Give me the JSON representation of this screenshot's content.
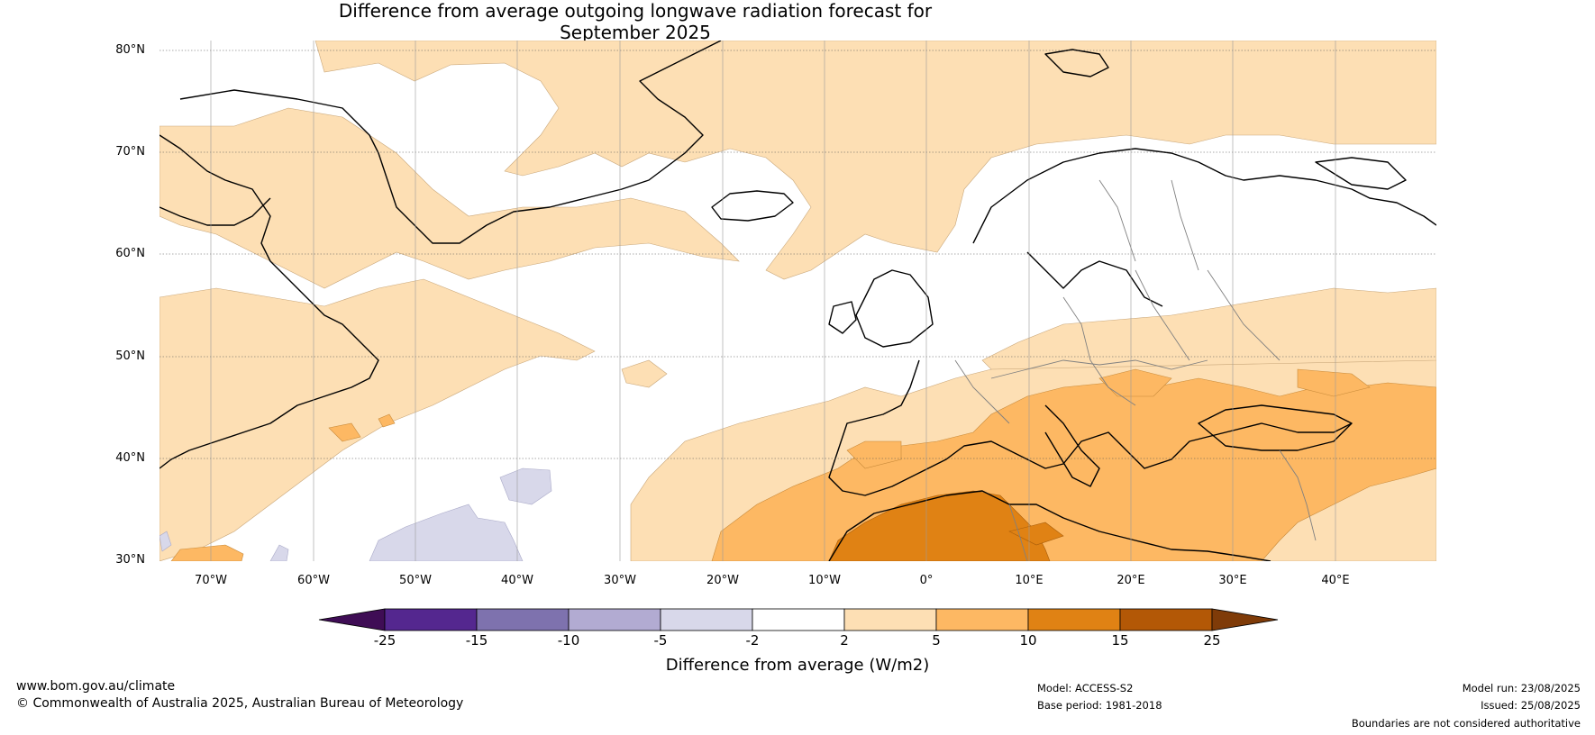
{
  "title": {
    "line1": "Difference from average outgoing longwave radiation forecast for",
    "line2": "September 2025"
  },
  "latitude_labels": [
    "80°N",
    "70°N",
    "60°N",
    "50°N",
    "40°N",
    "30°N"
  ],
  "longitude_labels": [
    "70°W",
    "60°W",
    "50°W",
    "40°W",
    "30°W",
    "20°W",
    "10°W",
    "0°",
    "10°E",
    "20°E",
    "30°E",
    "40°E"
  ],
  "map_extent": {
    "lon_min": -75,
    "lon_max": 50,
    "lat_min": 30,
    "lat_max": 81
  },
  "colorbar": {
    "label": "Difference from average (W/m2)",
    "ticks": [
      "-25",
      "-15",
      "-10",
      "-5",
      "-2",
      "2",
      "5",
      "10",
      "15",
      "25"
    ],
    "colors": {
      "below_-25": "#3f0d55",
      "-25_-15": "#54278f",
      "-15_-10": "#7e72ae",
      "-10_-5": "#b2abd2",
      "-5_-2": "#d8d8ea",
      "-2_2": "#ffffff",
      "2_5": "#fddfb4",
      "5_10": "#fdb863",
      "10_15": "#e08214",
      "15_25": "#b35806",
      "above_25": "#7f3b08"
    }
  },
  "footer": {
    "site": "www.bom.gov.au/climate",
    "copyright": "© Commonwealth of Australia 2025, Australian Bureau of Meteorology",
    "model": "Model: ACCESS-S2",
    "base_period": "Base period: 1981-2018",
    "model_run": "Model run: 23/08/2025",
    "issued": "Issued: 25/08/2025",
    "disclaimer": "Boundaries are not considered authoritative"
  }
}
